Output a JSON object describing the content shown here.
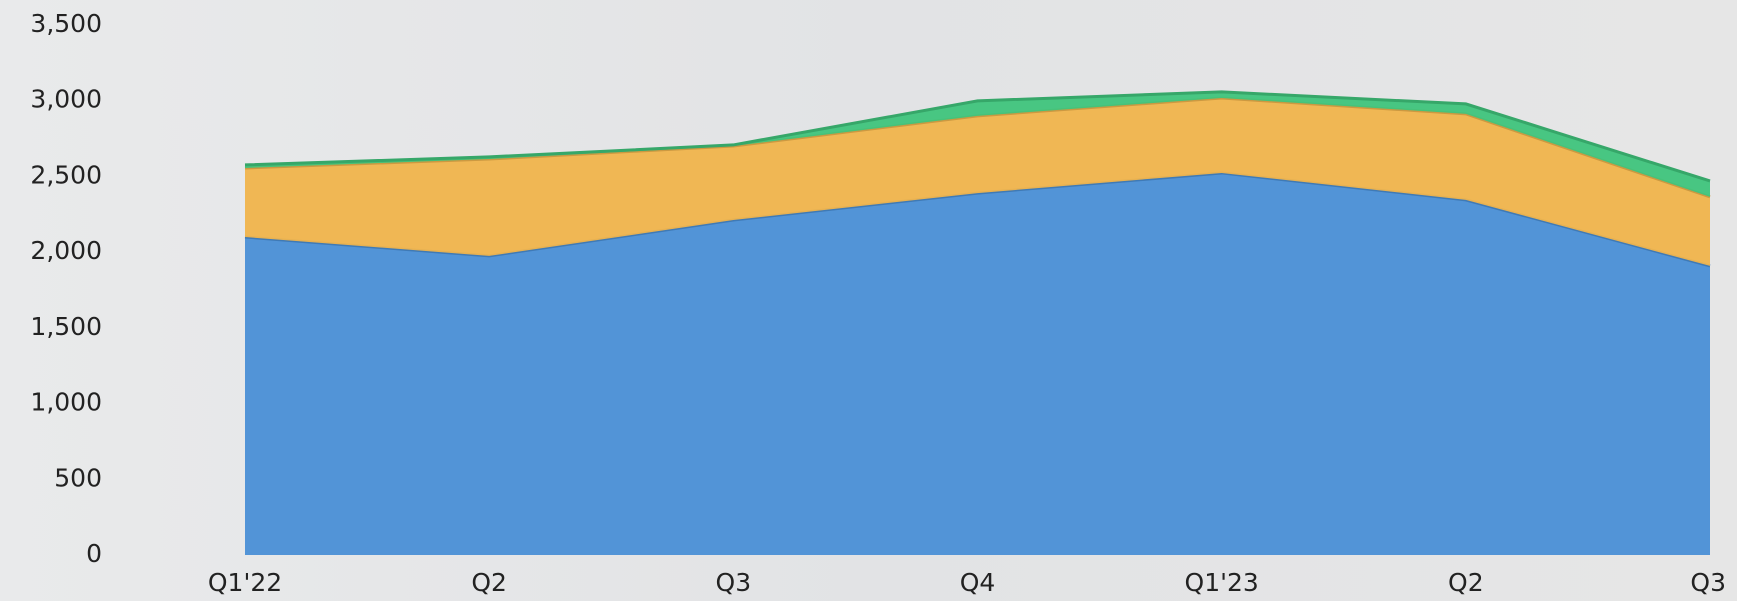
{
  "chart_data": {
    "type": "stacked_area",
    "categories": [
      "Q1'22",
      "Q2",
      "Q3",
      "Q4",
      "Q1'23",
      "Q2",
      "Q3"
    ],
    "series": [
      {
        "color": "#4a8fd6",
        "values": [
          2100,
          1975,
          2212,
          2390,
          2523,
          2345,
          1909
        ]
      },
      {
        "color": "#f0b44c",
        "values": [
          456,
          640,
          489,
          510,
          495,
          568,
          456
        ]
      },
      {
        "color": "#3fc47c",
        "values": [
          20,
          14,
          7,
          99,
          40,
          66,
          105
        ]
      }
    ],
    "ylim": [
      0,
      3500
    ],
    "yticks": [
      0,
      {
        "value": 500,
        "label": "500"
      },
      {
        "value": 1000,
        "label": "1,000"
      },
      {
        "value": 1500,
        "label": "1,500"
      },
      {
        "value": 2000,
        "label": "2,000"
      },
      {
        "value": 2500,
        "label": "2,500"
      },
      {
        "value": 3000,
        "label": "3,000"
      },
      {
        "value": 3500,
        "label": "3,500"
      }
    ]
  }
}
